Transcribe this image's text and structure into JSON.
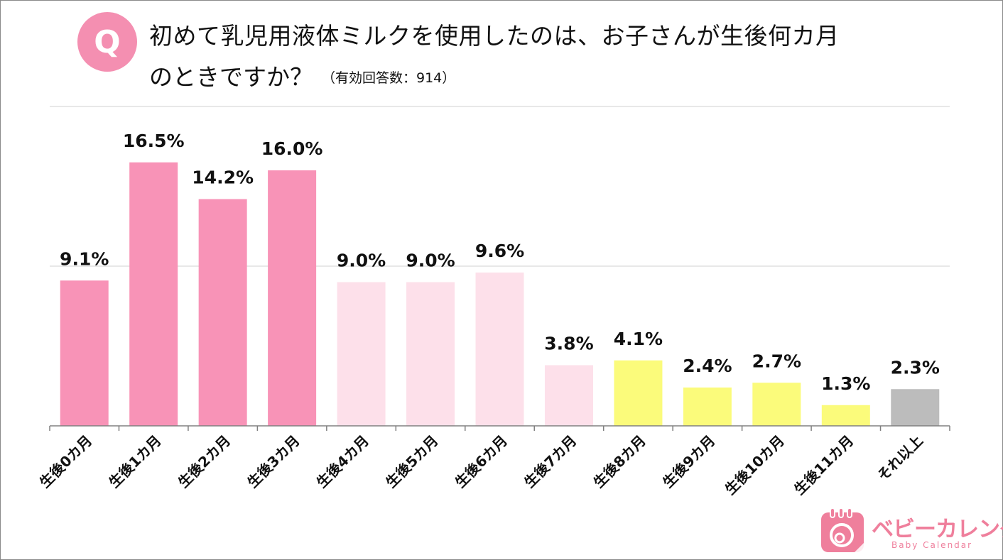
{
  "question": {
    "badge": "Q",
    "title_line1": "初めて乳児用液体ミルクを使用したのは、お子さんが生後何カ月",
    "title_line2": "のときですか？",
    "respondents_note": "（有効回答数：914）"
  },
  "chart_data": {
    "type": "bar",
    "categories": [
      "生後0カ月",
      "生後1カ月",
      "生後2カ月",
      "生後3カ月",
      "生後4カ月",
      "生後5カ月",
      "生後6カ月",
      "生後7カ月",
      "生後8カ月",
      "生後9カ月",
      "生後10カ月",
      "生後11カ月",
      "それ以上"
    ],
    "values": [
      9.1,
      16.5,
      14.2,
      16.0,
      9.0,
      9.0,
      9.6,
      3.8,
      4.1,
      2.4,
      2.7,
      1.3,
      2.3
    ],
    "value_labels": [
      "9.1%",
      "16.5%",
      "14.2%",
      "16.0%",
      "9.0%",
      "9.0%",
      "9.6%",
      "3.8%",
      "4.1%",
      "2.4%",
      "2.7%",
      "1.3%",
      "2.3%"
    ],
    "bar_colors": [
      "#f893b7",
      "#f893b7",
      "#f893b7",
      "#f893b7",
      "#fde0ea",
      "#fde0ea",
      "#fde0ea",
      "#fde0ea",
      "#fbfb7b",
      "#fbfb7b",
      "#fbfb7b",
      "#fbfb7b",
      "#bcbcbc"
    ],
    "ylim": [
      0,
      20
    ],
    "grid": true,
    "gridlines": [
      10,
      20
    ],
    "xlabel": "",
    "ylabel": ""
  },
  "logo": {
    "name": "ベビーカレンダー",
    "sub": "Baby Calendar",
    "color": "#ef7f9c"
  }
}
